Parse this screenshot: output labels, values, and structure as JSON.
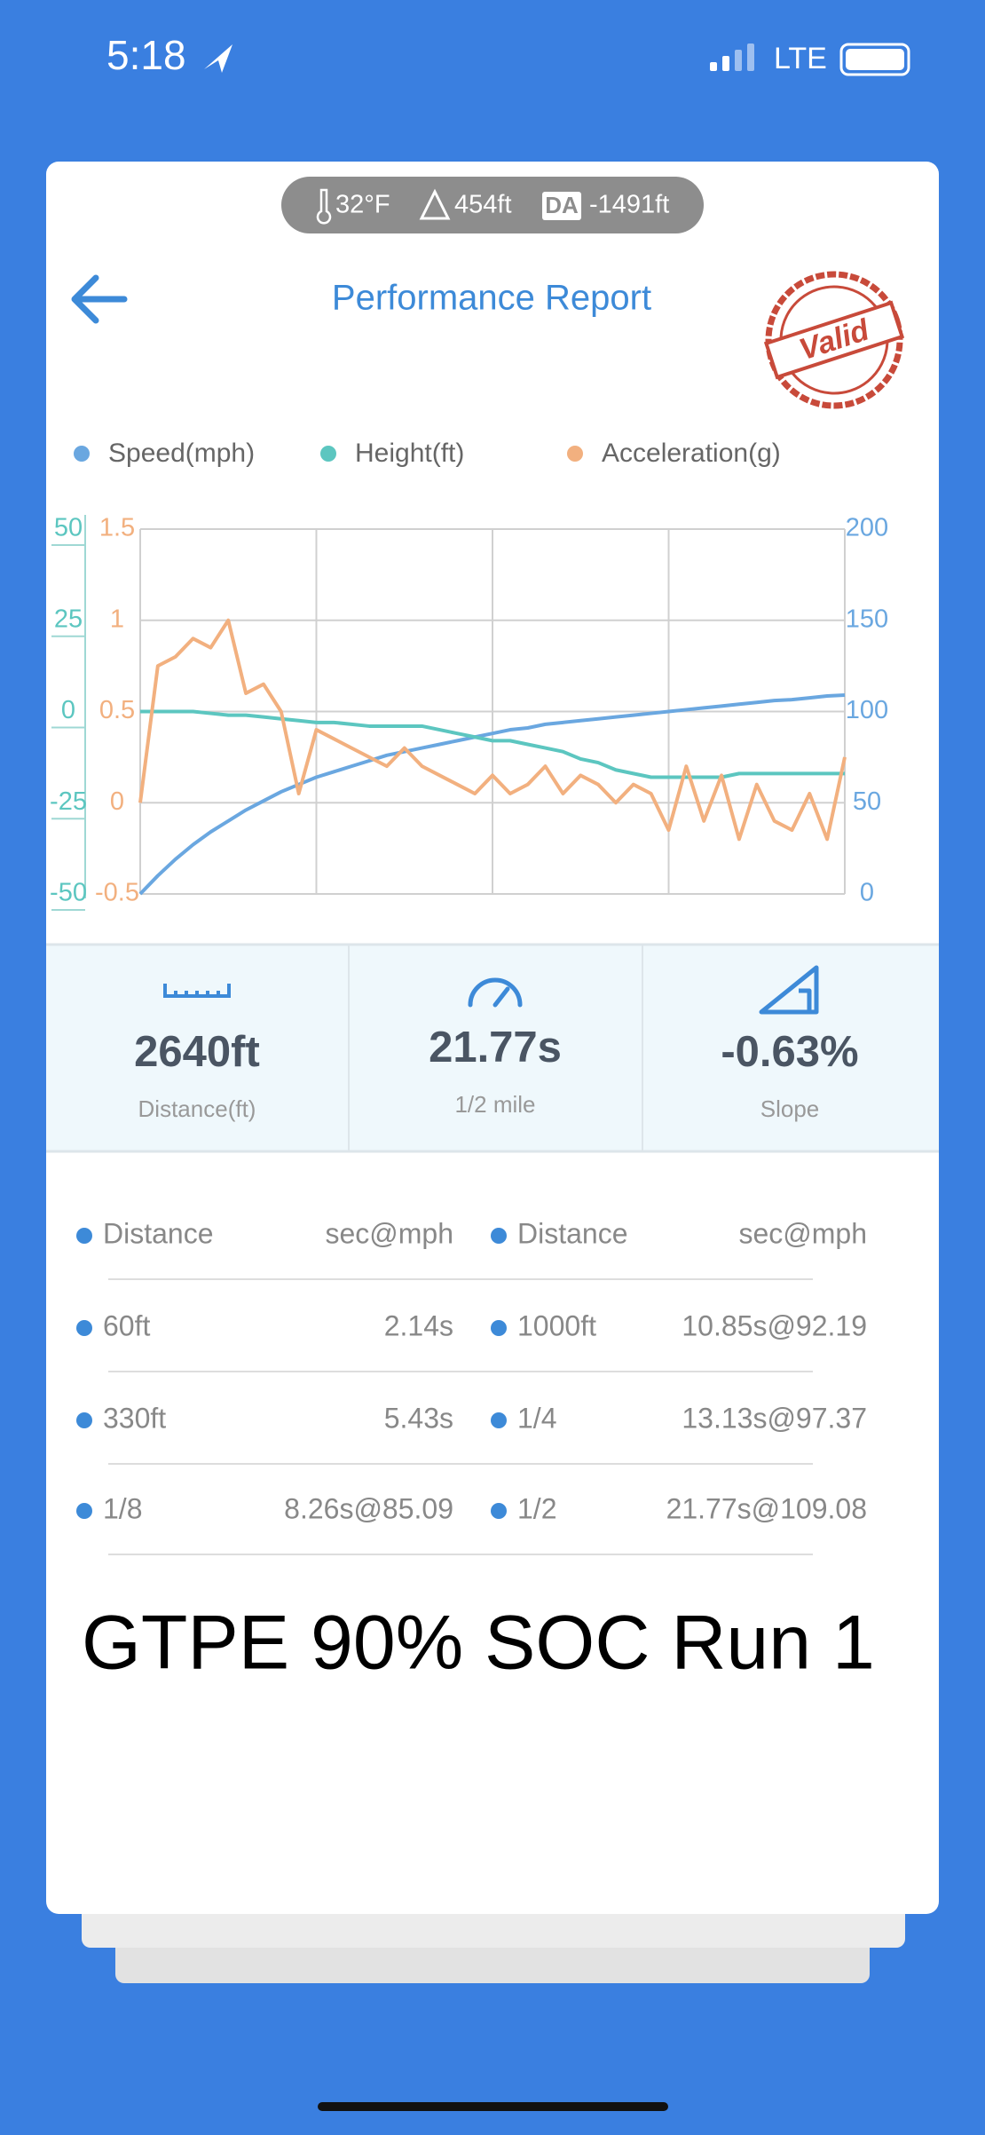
{
  "status": {
    "time": "5:18",
    "network": "LTE"
  },
  "conditions": {
    "temperature": "32°F",
    "altitude": "454ft",
    "da_badge": "DA",
    "density_altitude": "-1491ft"
  },
  "header": {
    "title": "Performance Report",
    "stamp": "Valid"
  },
  "chart_data": {
    "type": "line",
    "series": [
      {
        "name": "Speed(mph)",
        "color": "#6aa7e0",
        "axis": "y2",
        "values": [
          0,
          10,
          19,
          27,
          34,
          40,
          46,
          51,
          56,
          60,
          64,
          67,
          70,
          73,
          76,
          78,
          80,
          82,
          84,
          86,
          88,
          90,
          91,
          93,
          94,
          95,
          96,
          97,
          98,
          99,
          100,
          101,
          102,
          103,
          104,
          105,
          106,
          106.5,
          107.5,
          108.5,
          109
        ]
      },
      {
        "name": "Height(ft)",
        "color": "#5cc6c0",
        "values": [
          0,
          0,
          0,
          0,
          -0.5,
          -1,
          -1,
          -1.5,
          -2,
          -2.5,
          -3,
          -3,
          -3.5,
          -4,
          -4,
          -4,
          -4,
          -5,
          -6,
          -7,
          -8,
          -8,
          -9,
          -10,
          -11,
          -13,
          -14,
          -16,
          -17,
          -18,
          -18,
          -18,
          -18,
          -18,
          -17,
          -17,
          -17,
          -17,
          -17,
          -17,
          -17
        ]
      },
      {
        "name": "Acceleration(g)",
        "color": "#f2b07f",
        "axis": "y3",
        "values": [
          0,
          0.75,
          0.8,
          0.9,
          0.85,
          1.0,
          0.6,
          0.65,
          0.5,
          0.05,
          0.4,
          0.35,
          0.3,
          0.25,
          0.2,
          0.3,
          0.2,
          0.15,
          0.1,
          0.05,
          0.15,
          0.05,
          0.1,
          0.2,
          0.05,
          0.15,
          0.1,
          0,
          0.1,
          0.05,
          -0.15,
          0.2,
          -0.1,
          0.15,
          -0.2,
          0.1,
          -0.1,
          -0.15,
          0.05,
          -0.2,
          0.25
        ]
      }
    ],
    "ylim": [
      -50,
      50
    ],
    "yticks": [
      -50,
      -25,
      0,
      25,
      50
    ],
    "y2lim": [
      0,
      200
    ],
    "y2ticks": [
      0,
      50,
      100,
      150,
      200
    ],
    "y3lim": [
      -0.5,
      1.5
    ],
    "y3ticks": [
      -0.5,
      0,
      0.5,
      1,
      1.5
    ],
    "grid": true
  },
  "stats": [
    {
      "value": "2640ft",
      "label": "Distance(ft)"
    },
    {
      "value": "21.77s",
      "label": "1/2 mile"
    },
    {
      "value": "-0.63%",
      "label": "Slope"
    }
  ],
  "table": {
    "rows": [
      [
        "Distance",
        "sec@mph",
        "Distance",
        "sec@mph"
      ],
      [
        "60ft",
        "2.14s",
        "1000ft",
        "10.85s@92.19"
      ],
      [
        "330ft",
        "5.43s",
        "1/4",
        "13.13s@97.37"
      ],
      [
        "1/8",
        "8.26s@85.09",
        "1/2",
        "21.77s@109.08"
      ]
    ]
  },
  "caption": "GTPE 90% SOC Run 1"
}
